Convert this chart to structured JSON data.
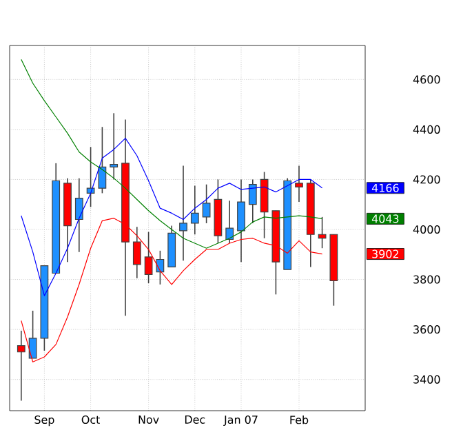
{
  "chart_data": {
    "type": "candlestick",
    "x": [
      "2006-08-21",
      "2006-08-28",
      "2006-09-04",
      "2006-09-11",
      "2006-09-18",
      "2006-09-25",
      "2006-10-02",
      "2006-10-09",
      "2006-10-16",
      "2006-10-23",
      "2006-10-30",
      "2006-11-06",
      "2006-11-13",
      "2006-11-20",
      "2006-11-27",
      "2006-12-04",
      "2006-12-11",
      "2006-12-18",
      "2006-12-25",
      "2007-01-01",
      "2007-01-08",
      "2007-01-15",
      "2007-01-22",
      "2007-01-29",
      "2007-02-05",
      "2007-02-12",
      "2007-02-19",
      "2007-02-26"
    ],
    "ohlc": [
      [
        3535,
        3595,
        3315,
        3510
      ],
      [
        3485,
        3675,
        3485,
        3565
      ],
      [
        3565,
        3855,
        3515,
        3855
      ],
      [
        3825,
        4265,
        3825,
        4195
      ],
      [
        4185,
        4205,
        3870,
        4015
      ],
      [
        4040,
        4205,
        3910,
        4125
      ],
      [
        4145,
        4330,
        4090,
        4165
      ],
      [
        4165,
        4410,
        4145,
        4250
      ],
      [
        4250,
        4465,
        4200,
        4260
      ],
      [
        4265,
        4440,
        3655,
        3950
      ],
      [
        3950,
        4010,
        3805,
        3860
      ],
      [
        3890,
        3990,
        3785,
        3820
      ],
      [
        3830,
        3915,
        3780,
        3880
      ],
      [
        3850,
        4015,
        3850,
        3985
      ],
      [
        3995,
        4255,
        3875,
        4025
      ],
      [
        4025,
        4175,
        3980,
        4065
      ],
      [
        4050,
        4180,
        4025,
        4105
      ],
      [
        4120,
        4200,
        3945,
        3975
      ],
      [
        3960,
        4115,
        3945,
        4005
      ],
      [
        3995,
        4200,
        3870,
        4110
      ],
      [
        4100,
        4200,
        4025,
        4180
      ],
      [
        4200,
        4230,
        3965,
        4070
      ],
      [
        4075,
        4075,
        3740,
        3870
      ],
      [
        3840,
        4205,
        3840,
        4195
      ],
      [
        4185,
        4255,
        4110,
        4170
      ],
      [
        4185,
        4200,
        3850,
        3980
      ],
      [
        3980,
        4050,
        3925,
        3965
      ],
      [
        3980,
        3980,
        3695,
        3795
      ]
    ],
    "colors": [
      "#ff0000",
      "#1e90ff",
      "#1e90ff",
      "#1e90ff",
      "#ff0000",
      "#1e90ff",
      "#1e90ff",
      "#1e90ff",
      "#1e90ff",
      "#ff0000",
      "#ff0000",
      "#ff0000",
      "#1e90ff",
      "#1e90ff",
      "#1e90ff",
      "#1e90ff",
      "#1e90ff",
      "#ff0000",
      "#1e90ff",
      "#1e90ff",
      "#1e90ff",
      "#ff0000",
      "#ff0000",
      "#1e90ff",
      "#ff0000",
      "#ff0000",
      "#ff0000",
      "#ff0000"
    ],
    "series": [
      {
        "type": "line",
        "color": "#0000ff",
        "values": [
          4055,
          3910,
          3735,
          3825,
          3925,
          4045,
          4145,
          4285,
          4320,
          4365,
          4295,
          4195,
          4085,
          4065,
          4040,
          4085,
          4120,
          4165,
          4185,
          4160,
          4165,
          4170,
          4150,
          4175,
          4200,
          4200,
          4166,
          null
        ]
      },
      {
        "type": "line",
        "color": "#008000",
        "values": [
          4680,
          4585,
          4515,
          4450,
          4385,
          4310,
          4270,
          4240,
          4205,
          4165,
          4120,
          4075,
          4035,
          4000,
          3965,
          3945,
          3925,
          3945,
          3965,
          3990,
          4030,
          4050,
          4045,
          4050,
          4055,
          4050,
          4043,
          null
        ]
      },
      {
        "type": "line",
        "color": "#ff0000",
        "values": [
          3635,
          3470,
          3490,
          3540,
          3650,
          3780,
          3925,
          4035,
          4045,
          4020,
          3975,
          3920,
          3835,
          3780,
          3835,
          3880,
          3920,
          3920,
          3945,
          3960,
          3965,
          3945,
          3935,
          3905,
          3955,
          3910,
          3902,
          null
        ]
      }
    ],
    "annotations": [
      "4166",
      "4043",
      "3902"
    ],
    "xlim": [
      "2006-08-14",
      "2007-03-17"
    ],
    "xticks": [
      {
        "value": "2006-09-04",
        "label": "Sep"
      },
      {
        "value": "2006-10-02",
        "label": "Oct"
      },
      {
        "value": "2006-11-06",
        "label": "Nov"
      },
      {
        "value": "2006-12-04",
        "label": "Dec"
      },
      {
        "value": "2007-01-01",
        "label": "Jan 07"
      },
      {
        "value": "2007-02-05",
        "label": "Feb"
      }
    ],
    "ylim": [
      3275,
      4736
    ],
    "yticks": [
      3400,
      3600,
      3800,
      4000,
      4200,
      4400,
      4600
    ],
    "grid": true
  }
}
